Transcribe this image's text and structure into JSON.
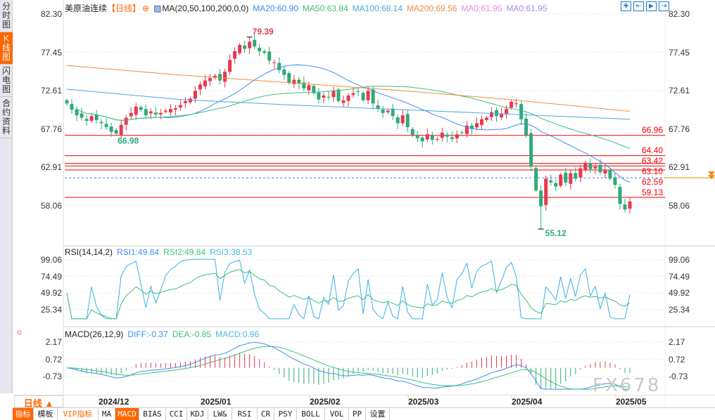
{
  "sidebar": {
    "tabs": [
      {
        "label": "分时图",
        "active": false
      },
      {
        "label": "K线图",
        "active": true
      },
      {
        "label": "闪电图",
        "active": false
      },
      {
        "label": "合约资料",
        "active": false
      }
    ]
  },
  "header": {
    "symbol": "美原油连续",
    "period": "【日线】",
    "ma_label": "MA(20,50,100,200,0,0)",
    "ma20": "MA20:60.90",
    "ma50": "MA50:63.84",
    "ma100": "MA100:68.14",
    "ma200": "MA200:69.56",
    "ma0a": "MA0:61.95",
    "ma0b": "MA0:61.95"
  },
  "colors": {
    "up": "#e8384f",
    "down": "#2eaa78",
    "ma20": "#3d8ef0",
    "ma50": "#3cbf7a",
    "ma100": "#4aa8e0",
    "ma200": "#f08a3c",
    "hline": "#f00000",
    "accent": "#ff6600"
  },
  "price_axis": {
    "ticks": [
      "82.30",
      "77.45",
      "72.61",
      "67.76",
      "62.91",
      "58.06"
    ],
    "min": 58.06,
    "max": 82.3
  },
  "rsi": {
    "label": "RSI(14,14,2)",
    "rsi1": "RSI1:49.84",
    "rsi2": "RSI2:49.84",
    "rsi3": "RSI3:38.53",
    "ticks": [
      "99.06",
      "74.49",
      "49.92",
      "25.34"
    ]
  },
  "macd": {
    "label": "MACD(26,12,9)",
    "diff": "DIFF:-0.37",
    "dea": "DEA:-0.85",
    "macd": "MACD:0.96",
    "ticks": [
      "2.17",
      "0.72",
      "-0.73"
    ]
  },
  "hlines": [
    {
      "label": "66.96",
      "value": 66.96
    },
    {
      "label": "64.40",
      "value": 64.4
    },
    {
      "label": "63.42",
      "value": 63.42
    },
    {
      "label": "63.10",
      "value": 63.1
    },
    {
      "label": "62.59",
      "value": 62.59
    },
    {
      "label": "59.13",
      "value": 59.13
    }
  ],
  "last_price": 61.6,
  "annotations": {
    "high": "79.39",
    "low": "55.12",
    "dec_low": "66.98"
  },
  "dates": [
    "2024/12",
    "2025/01",
    "2025/02",
    "2025/03",
    "2025/04",
    "2025/05"
  ],
  "day_button": "日线 ▲",
  "toolbar": [
    "指标",
    "模板",
    "VIP指标",
    "MA",
    "MACD",
    "BIAS",
    "CCI",
    "KDJ",
    "LW&",
    "RSI",
    "CR",
    "PSY",
    "BOLL",
    "VOL",
    "PP",
    "设置"
  ],
  "toolbar_active": "MACD",
  "watermark": "FX678",
  "chart_data": {
    "type": "candlestick",
    "closes": [
      71,
      70.2,
      69.5,
      69.2,
      68.8,
      69.4,
      68.9,
      68.5,
      68,
      67.4,
      67.2,
      68.3,
      69.2,
      69.8,
      70.6,
      70.2,
      69.5,
      70,
      69.6,
      69.8,
      70.1,
      70.3,
      70.4,
      70.8,
      71.3,
      71.6,
      72.6,
      73.4,
      73.9,
      74.2,
      74.5,
      73.9,
      75,
      76.5,
      77.6,
      78.4,
      77.9,
      78.8,
      78.2,
      77.6,
      77.4,
      76.4,
      76.2,
      75.2,
      74.6,
      73.6,
      74,
      73.5,
      72.9,
      73.3,
      72.3,
      71.5,
      72,
      71.8,
      72.6,
      71.3,
      71.4,
      72,
      72.3,
      72.5,
      71.4,
      72.6,
      71,
      70.3,
      69.8,
      70.1,
      69.4,
      68.5,
      69.5,
      68,
      67,
      66.6,
      66.2,
      67.1,
      66.4,
      66.5,
      67.3,
      66.8,
      66.5,
      67.1,
      67.3,
      68.2,
      67.8,
      68.5,
      69,
      69.2,
      69.9,
      69.4,
      69.7,
      70.3,
      71.2,
      71,
      69,
      67,
      63,
      60,
      58,
      61.5,
      61,
      60.5,
      62,
      61,
      62.2,
      61.5,
      62.8,
      63.5,
      62.7,
      63,
      62.3,
      62.6,
      61.5,
      60.7,
      58.3,
      57.6,
      58.6
    ],
    "ma100": [
      72.8,
      71.5,
      70.8,
      70.2,
      69.6,
      69.0
    ],
    "ma200": [
      75.8,
      74.6,
      73.6,
      72.6,
      71.4,
      70.0
    ]
  }
}
